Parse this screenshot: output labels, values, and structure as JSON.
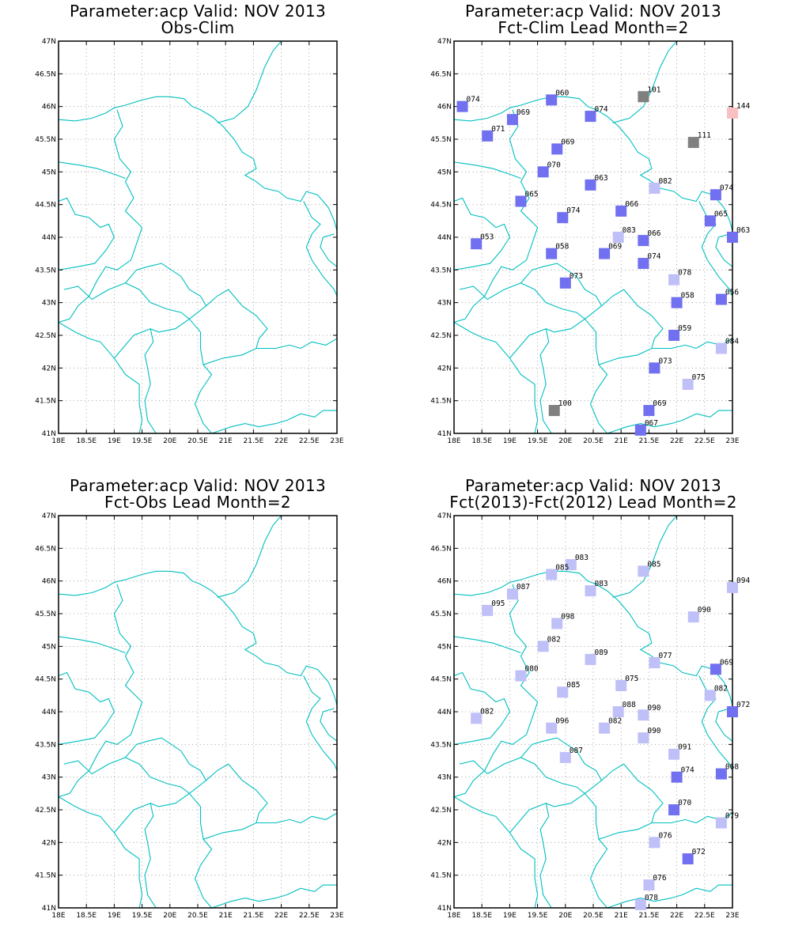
{
  "colors": {
    "border": "#00bfbf",
    "grid": "#a0a0a0",
    "frame": "#000000",
    "station_dark": "#7070f0",
    "station_light": "#c0c0f8",
    "station_gray": "#808080",
    "station_pink": "#f8c0c0"
  },
  "axes": {
    "lon_labels": [
      "18E",
      "18.5E",
      "19E",
      "19.5E",
      "20E",
      "20.5E",
      "21E",
      "21.5E",
      "22E",
      "22.5E",
      "23E"
    ],
    "lat_labels": [
      "41N",
      "41.5N",
      "42N",
      "42.5N",
      "43N",
      "43.5N",
      "44N",
      "44.5N",
      "45N",
      "45.5N",
      "46N",
      "46.5N",
      "47N"
    ],
    "lon_range": [
      18,
      23
    ],
    "lat_range": [
      41,
      47
    ],
    "grid": "dotted"
  },
  "panels": [
    {
      "title1": "Parameter:acp Valid: NOV 2013",
      "title2": "Obs-Clim",
      "stations": []
    },
    {
      "title1": "Parameter:acp Valid: NOV 2013",
      "title2": "Fct-Clim Lead Month=2",
      "stations": [
        {
          "lon": 18.15,
          "lat": 46.0,
          "label": "074",
          "color": "dark"
        },
        {
          "lon": 19.75,
          "lat": 46.1,
          "label": "060",
          "color": "dark"
        },
        {
          "lon": 19.05,
          "lat": 45.8,
          "label": "069",
          "color": "dark"
        },
        {
          "lon": 20.45,
          "lat": 45.85,
          "label": "074",
          "color": "dark"
        },
        {
          "lon": 21.4,
          "lat": 46.15,
          "label": "101",
          "color": "gray"
        },
        {
          "lon": 23.0,
          "lat": 45.9,
          "label": "144",
          "color": "pink"
        },
        {
          "lon": 18.6,
          "lat": 45.55,
          "label": "071",
          "color": "dark"
        },
        {
          "lon": 19.85,
          "lat": 45.35,
          "label": "069",
          "color": "dark"
        },
        {
          "lon": 22.3,
          "lat": 45.45,
          "label": "111",
          "color": "gray"
        },
        {
          "lon": 19.6,
          "lat": 45.0,
          "label": "070",
          "color": "dark"
        },
        {
          "lon": 20.45,
          "lat": 44.8,
          "label": "063",
          "color": "dark"
        },
        {
          "lon": 21.6,
          "lat": 44.75,
          "label": "082",
          "color": "light"
        },
        {
          "lon": 22.7,
          "lat": 44.65,
          "label": "074",
          "color": "dark"
        },
        {
          "lon": 19.2,
          "lat": 44.55,
          "label": "065",
          "color": "dark"
        },
        {
          "lon": 21.0,
          "lat": 44.4,
          "label": "066",
          "color": "dark"
        },
        {
          "lon": 19.95,
          "lat": 44.3,
          "label": "074",
          "color": "dark"
        },
        {
          "lon": 22.6,
          "lat": 44.25,
          "label": "065",
          "color": "dark"
        },
        {
          "lon": 20.95,
          "lat": 44.0,
          "label": "083",
          "color": "light"
        },
        {
          "lon": 21.4,
          "lat": 43.95,
          "label": "066",
          "color": "dark"
        },
        {
          "lon": 23.0,
          "lat": 44.0,
          "label": "063",
          "color": "dark"
        },
        {
          "lon": 18.4,
          "lat": 43.9,
          "label": "053",
          "color": "dark"
        },
        {
          "lon": 19.75,
          "lat": 43.75,
          "label": "058",
          "color": "dark"
        },
        {
          "lon": 20.7,
          "lat": 43.75,
          "label": "069",
          "color": "dark"
        },
        {
          "lon": 21.4,
          "lat": 43.6,
          "label": "074",
          "color": "dark"
        },
        {
          "lon": 20.0,
          "lat": 43.3,
          "label": "073",
          "color": "dark"
        },
        {
          "lon": 21.95,
          "lat": 43.35,
          "label": "078",
          "color": "light"
        },
        {
          "lon": 22.0,
          "lat": 43.0,
          "label": "058",
          "color": "dark"
        },
        {
          "lon": 22.8,
          "lat": 43.05,
          "label": "056",
          "color": "dark"
        },
        {
          "lon": 21.95,
          "lat": 42.5,
          "label": "059",
          "color": "dark"
        },
        {
          "lon": 22.8,
          "lat": 42.3,
          "label": "084",
          "color": "light"
        },
        {
          "lon": 21.6,
          "lat": 42.0,
          "label": "073",
          "color": "dark"
        },
        {
          "lon": 22.2,
          "lat": 41.75,
          "label": "075",
          "color": "light"
        },
        {
          "lon": 19.8,
          "lat": 41.35,
          "label": "100",
          "color": "gray"
        },
        {
          "lon": 21.5,
          "lat": 41.35,
          "label": "069",
          "color": "dark"
        },
        {
          "lon": 21.35,
          "lat": 41.05,
          "label": "067",
          "color": "dark"
        }
      ]
    },
    {
      "title1": "Parameter:acp Valid: NOV 2013",
      "title2": "Fct-Obs Lead Month=2",
      "stations": []
    },
    {
      "title1": "Parameter:acp Valid: NOV 2013",
      "title2": "Fct(2013)-Fct(2012) Lead Month=2",
      "stations": [
        {
          "lon": 20.1,
          "lat": 46.25,
          "label": "083",
          "color": "light"
        },
        {
          "lon": 19.75,
          "lat": 46.1,
          "label": "085",
          "color": "light"
        },
        {
          "lon": 21.4,
          "lat": 46.15,
          "label": "085",
          "color": "light"
        },
        {
          "lon": 19.05,
          "lat": 45.8,
          "label": "087",
          "color": "light"
        },
        {
          "lon": 20.45,
          "lat": 45.85,
          "label": "083",
          "color": "light"
        },
        {
          "lon": 23.0,
          "lat": 45.9,
          "label": "094",
          "color": "light"
        },
        {
          "lon": 18.6,
          "lat": 45.55,
          "label": "095",
          "color": "light"
        },
        {
          "lon": 19.85,
          "lat": 45.35,
          "label": "098",
          "color": "light"
        },
        {
          "lon": 22.3,
          "lat": 45.45,
          "label": "090",
          "color": "light"
        },
        {
          "lon": 19.6,
          "lat": 45.0,
          "label": "082",
          "color": "light"
        },
        {
          "lon": 20.45,
          "lat": 44.8,
          "label": "089",
          "color": "light"
        },
        {
          "lon": 21.6,
          "lat": 44.75,
          "label": "077",
          "color": "light"
        },
        {
          "lon": 22.7,
          "lat": 44.65,
          "label": "069",
          "color": "dark"
        },
        {
          "lon": 19.2,
          "lat": 44.55,
          "label": "080",
          "color": "light"
        },
        {
          "lon": 21.0,
          "lat": 44.4,
          "label": "075",
          "color": "light"
        },
        {
          "lon": 19.95,
          "lat": 44.3,
          "label": "085",
          "color": "light"
        },
        {
          "lon": 22.6,
          "lat": 44.25,
          "label": "082",
          "color": "light"
        },
        {
          "lon": 20.95,
          "lat": 44.0,
          "label": "088",
          "color": "light"
        },
        {
          "lon": 21.4,
          "lat": 43.95,
          "label": "090",
          "color": "light"
        },
        {
          "lon": 23.0,
          "lat": 44.0,
          "label": "072",
          "color": "dark"
        },
        {
          "lon": 18.4,
          "lat": 43.9,
          "label": "082",
          "color": "light"
        },
        {
          "lon": 19.75,
          "lat": 43.75,
          "label": "096",
          "color": "light"
        },
        {
          "lon": 20.7,
          "lat": 43.75,
          "label": "082",
          "color": "light"
        },
        {
          "lon": 21.4,
          "lat": 43.6,
          "label": "090",
          "color": "light"
        },
        {
          "lon": 20.0,
          "lat": 43.3,
          "label": "087",
          "color": "light"
        },
        {
          "lon": 21.95,
          "lat": 43.35,
          "label": "091",
          "color": "light"
        },
        {
          "lon": 22.0,
          "lat": 43.0,
          "label": "074",
          "color": "dark"
        },
        {
          "lon": 22.8,
          "lat": 43.05,
          "label": "068",
          "color": "dark"
        },
        {
          "lon": 21.95,
          "lat": 42.5,
          "label": "070",
          "color": "dark"
        },
        {
          "lon": 22.8,
          "lat": 42.3,
          "label": "079",
          "color": "light"
        },
        {
          "lon": 21.6,
          "lat": 42.0,
          "label": "076",
          "color": "light"
        },
        {
          "lon": 22.2,
          "lat": 41.75,
          "label": "072",
          "color": "dark"
        },
        {
          "lon": 21.5,
          "lat": 41.35,
          "label": "076",
          "color": "light"
        },
        {
          "lon": 21.35,
          "lat": 41.05,
          "label": "078",
          "color": "light"
        }
      ]
    }
  ]
}
